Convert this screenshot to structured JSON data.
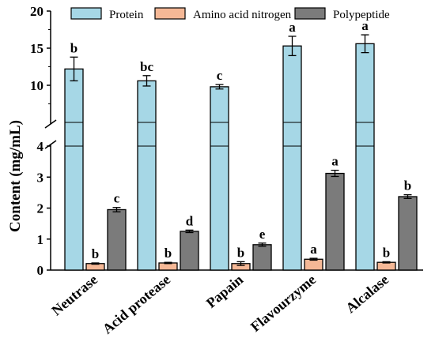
{
  "chart_data": {
    "type": "bar",
    "categories": [
      "Neutrase",
      "Acid protease",
      "Papain",
      "Flavourzyme",
      "Alcalase"
    ],
    "ylabel": "Content (mg/mL)",
    "xlabel": "",
    "title": "",
    "y_axis_break": {
      "lower_range": [
        0,
        4
      ],
      "upper_range": [
        5,
        20
      ]
    },
    "yticks_lower": [
      0,
      1,
      2,
      3,
      4
    ],
    "yticks_upper": [
      10,
      15,
      20
    ],
    "legend_position": "top",
    "grid": false,
    "series": [
      {
        "name": "Protein",
        "color": "#a6d7e6",
        "values": [
          12.2,
          10.6,
          9.8,
          15.3,
          15.6
        ],
        "errors": [
          1.6,
          0.7,
          0.3,
          1.3,
          1.2
        ],
        "letters": [
          "b",
          "bc",
          "c",
          "a",
          "a"
        ]
      },
      {
        "name": "Amino acid nitrogen",
        "color": "#f5b896",
        "values": [
          0.21,
          0.23,
          0.21,
          0.35,
          0.25
        ],
        "errors": [
          0.02,
          0.02,
          0.06,
          0.03,
          0.02
        ],
        "letters": [
          "b",
          "b",
          "b",
          "a",
          "b"
        ]
      },
      {
        "name": "Polypeptide",
        "color": "#7b7b7b",
        "values": [
          1.95,
          1.25,
          0.82,
          3.12,
          2.37
        ],
        "errors": [
          0.07,
          0.04,
          0.05,
          0.1,
          0.06
        ],
        "letters": [
          "c",
          "d",
          "e",
          "a",
          "b"
        ]
      }
    ]
  }
}
